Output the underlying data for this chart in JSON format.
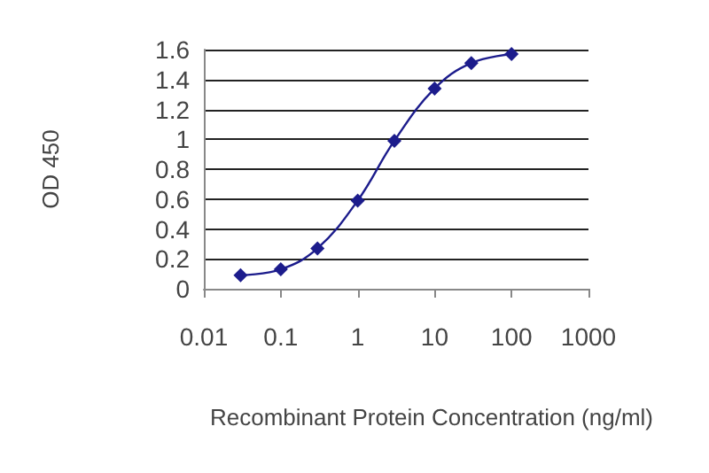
{
  "chart_data": {
    "type": "line",
    "xlabel": "Recombinant Protein Concentration (ng/ml)",
    "ylabel": "OD 450",
    "x": [
      0.03,
      0.1,
      0.3,
      1,
      3,
      10,
      30,
      100
    ],
    "series": [
      {
        "color": "#1c1c8c",
        "values": [
          0.09,
          0.13,
          0.27,
          0.59,
          0.99,
          1.34,
          1.51,
          1.57
        ]
      }
    ],
    "log": "x",
    "xlim": [
      0.01,
      1000
    ],
    "xticks": [
      0.01,
      0.1,
      1,
      10,
      100,
      1000
    ],
    "ylim": [
      0,
      1.6
    ],
    "yticks": [
      0,
      0.2,
      0.4,
      0.6,
      0.8,
      1,
      1.2,
      1.4,
      1.6
    ],
    "grid": "y",
    "marker": "diamond",
    "line_style": "solid"
  }
}
